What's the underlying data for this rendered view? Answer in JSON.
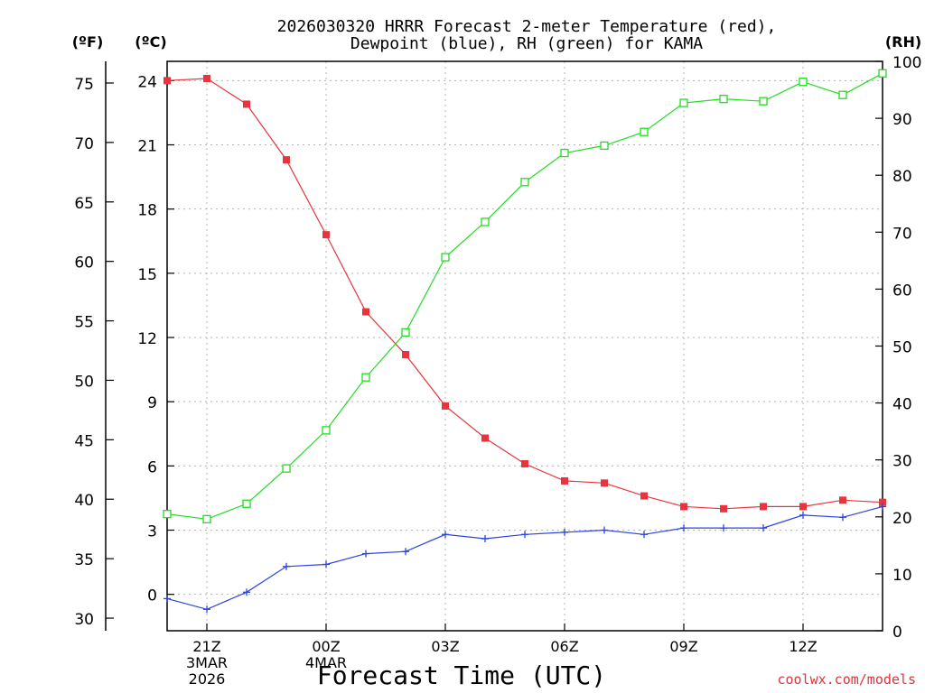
{
  "chart_data": {
    "type": "line",
    "title_line1": "2026030320 HRRR Forecast 2-meter Temperature (red),",
    "title_line2": "Dewpoint (blue), RH (green) for KAMA",
    "xlabel": "Forecast Time (UTC)",
    "unit_f": "(ºF)",
    "unit_c": "(ºC)",
    "unit_rh": "(RH)",
    "x_hours": [
      20,
      21,
      22,
      23,
      24,
      25,
      26,
      27,
      28,
      29,
      30,
      31,
      32,
      33,
      34,
      35,
      36,
      37,
      38
    ],
    "xlim": [
      20,
      38
    ],
    "x_ticks": [
      {
        "hour": 21,
        "lines": [
          "21Z",
          "3MAR",
          "2026"
        ]
      },
      {
        "hour": 24,
        "lines": [
          "00Z",
          "4MAR"
        ]
      },
      {
        "hour": 27,
        "lines": [
          "03Z"
        ]
      },
      {
        "hour": 30,
        "lines": [
          "06Z"
        ]
      },
      {
        "hour": 33,
        "lines": [
          "09Z"
        ]
      },
      {
        "hour": 36,
        "lines": [
          "12Z"
        ]
      }
    ],
    "celsius_axis": {
      "ylim": [
        -1.7,
        24.9
      ],
      "ticks": [
        0,
        3,
        6,
        9,
        12,
        15,
        18,
        21,
        24
      ]
    },
    "fahrenheit_ticks": [
      30,
      35,
      40,
      45,
      50,
      55,
      60,
      65,
      70,
      75
    ],
    "rh_axis": {
      "ylim": [
        0,
        100
      ],
      "ticks": [
        0,
        10,
        20,
        30,
        40,
        50,
        60,
        70,
        80,
        90,
        100
      ]
    },
    "series": [
      {
        "name": "Temperature",
        "axis": "C",
        "color": "#e8343c",
        "marker": "square-filled",
        "values": [
          24.0,
          24.1,
          22.9,
          20.3,
          16.8,
          13.2,
          11.2,
          8.8,
          7.3,
          6.1,
          5.3,
          5.2,
          4.6,
          4.1,
          4.0,
          4.1,
          4.1,
          4.4,
          4.3
        ]
      },
      {
        "name": "Dewpoint",
        "axis": "C",
        "color": "#2b44e0",
        "marker": "plus",
        "values": [
          -0.2,
          -0.7,
          0.1,
          1.3,
          1.4,
          1.9,
          2.0,
          2.8,
          2.6,
          2.8,
          2.9,
          3.0,
          2.8,
          3.1,
          3.1,
          3.1,
          3.7,
          3.6,
          4.1
        ]
      },
      {
        "name": "RH",
        "axis": "RH",
        "color": "#22dd22",
        "marker": "square-open",
        "values": [
          20.5,
          19.6,
          22.3,
          28.5,
          35.2,
          44.5,
          52.4,
          65.6,
          71.8,
          78.8,
          83.9,
          85.2,
          87.6,
          92.7,
          93.4,
          93.0,
          96.4,
          94.1,
          97.9
        ]
      }
    ]
  },
  "credit": "coolwx.com/models"
}
